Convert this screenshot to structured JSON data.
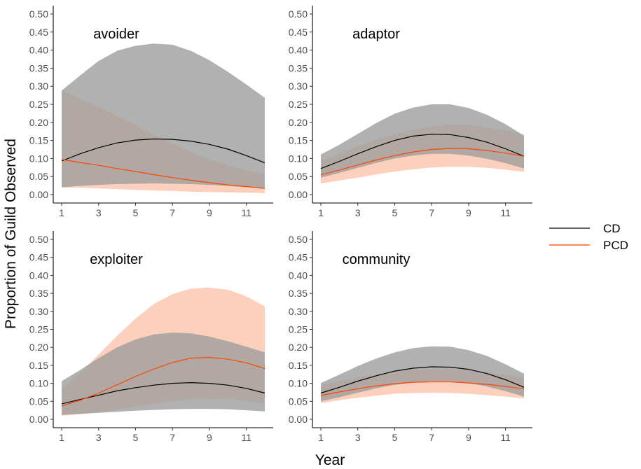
{
  "chart_data": {
    "type": "line",
    "xlabel": "Year",
    "ylabel": "Proportion of Guild Observed",
    "xlim": [
      1,
      12
    ],
    "ylim": [
      0,
      0.5
    ],
    "x_ticks": [
      1,
      3,
      5,
      7,
      9,
      11
    ],
    "y_ticks": [
      "0.00",
      "0.05",
      "0.10",
      "0.15",
      "0.20",
      "0.25",
      "0.30",
      "0.35",
      "0.40",
      "0.45",
      "0.50"
    ],
    "x": [
      1,
      2,
      3,
      4,
      5,
      6,
      7,
      8,
      9,
      10,
      11,
      12
    ],
    "legend": {
      "position": "right",
      "entries": [
        {
          "name": "CD",
          "color": "#000000"
        },
        {
          "name": "PCD",
          "color": "#ff4500"
        }
      ]
    },
    "ribbon_colors": {
      "CD": "#9e9e9e",
      "PCD": "#fbb79a"
    },
    "panels": [
      {
        "title": "avoider",
        "series": [
          {
            "name": "CD",
            "values": [
              0.093,
              0.113,
              0.13,
              0.143,
              0.151,
              0.154,
              0.153,
              0.148,
              0.139,
              0.126,
              0.108,
              0.088
            ],
            "lower": [
              0.02,
              0.024,
              0.027,
              0.029,
              0.03,
              0.031,
              0.03,
              0.029,
              0.027,
              0.024,
              0.021,
              0.018
            ],
            "upper": [
              0.288,
              0.33,
              0.37,
              0.398,
              0.412,
              0.418,
              0.415,
              0.398,
              0.372,
              0.34,
              0.305,
              0.268
            ]
          },
          {
            "name": "PCD",
            "values": [
              0.097,
              0.089,
              0.081,
              0.072,
              0.064,
              0.055,
              0.047,
              0.04,
              0.033,
              0.027,
              0.022,
              0.017
            ],
            "lower": [
              0.02,
              0.019,
              0.017,
              0.015,
              0.013,
              0.011,
              0.01,
              0.008,
              0.007,
              0.006,
              0.005,
              0.004
            ],
            "upper": [
              0.288,
              0.265,
              0.243,
              0.218,
              0.193,
              0.165,
              0.141,
              0.118,
              0.099,
              0.082,
              0.067,
              0.056
            ]
          }
        ]
      },
      {
        "title": "adaptor",
        "series": [
          {
            "name": "CD",
            "values": [
              0.072,
              0.092,
              0.113,
              0.133,
              0.15,
              0.162,
              0.167,
              0.166,
              0.158,
              0.145,
              0.127,
              0.106
            ],
            "lower": [
              0.047,
              0.06,
              0.074,
              0.088,
              0.1,
              0.108,
              0.113,
              0.113,
              0.108,
              0.099,
              0.087,
              0.072
            ],
            "upper": [
              0.111,
              0.138,
              0.168,
              0.198,
              0.224,
              0.241,
              0.25,
              0.25,
              0.24,
              0.221,
              0.195,
              0.163
            ]
          },
          {
            "name": "PCD",
            "values": [
              0.055,
              0.068,
              0.082,
              0.096,
              0.108,
              0.118,
              0.125,
              0.128,
              0.127,
              0.122,
              0.115,
              0.106
            ],
            "lower": [
              0.031,
              0.039,
              0.047,
              0.056,
              0.064,
              0.07,
              0.075,
              0.077,
              0.077,
              0.074,
              0.069,
              0.063
            ],
            "upper": [
              0.093,
              0.113,
              0.134,
              0.152,
              0.167,
              0.18,
              0.189,
              0.193,
              0.192,
              0.187,
              0.178,
              0.166
            ]
          }
        ]
      },
      {
        "title": "exploiter",
        "series": [
          {
            "name": "CD",
            "values": [
              0.043,
              0.055,
              0.067,
              0.079,
              0.088,
              0.095,
              0.1,
              0.102,
              0.1,
              0.095,
              0.086,
              0.073
            ],
            "lower": [
              0.012,
              0.015,
              0.018,
              0.021,
              0.024,
              0.026,
              0.028,
              0.029,
              0.029,
              0.028,
              0.025,
              0.022
            ],
            "upper": [
              0.106,
              0.137,
              0.17,
              0.2,
              0.222,
              0.236,
              0.241,
              0.239,
              0.23,
              0.217,
              0.202,
              0.186
            ]
          },
          {
            "name": "PCD",
            "values": [
              0.037,
              0.053,
              0.073,
              0.096,
              0.119,
              0.14,
              0.158,
              0.17,
              0.172,
              0.167,
              0.157,
              0.141
            ],
            "lower": [
              0.01,
              0.014,
              0.02,
              0.027,
              0.035,
              0.043,
              0.05,
              0.055,
              0.057,
              0.056,
              0.051,
              0.044
            ],
            "upper": [
              0.085,
              0.13,
              0.18,
              0.232,
              0.28,
              0.321,
              0.348,
              0.363,
              0.366,
              0.36,
              0.342,
              0.314
            ]
          }
        ]
      },
      {
        "title": "community",
        "series": [
          {
            "name": "CD",
            "values": [
              0.073,
              0.089,
              0.106,
              0.121,
              0.134,
              0.142,
              0.146,
              0.145,
              0.139,
              0.127,
              0.11,
              0.089
            ],
            "lower": [
              0.05,
              0.061,
              0.074,
              0.086,
              0.096,
              0.102,
              0.106,
              0.106,
              0.101,
              0.091,
              0.078,
              0.063
            ],
            "upper": [
              0.101,
              0.124,
              0.148,
              0.169,
              0.186,
              0.198,
              0.203,
              0.202,
              0.192,
              0.176,
              0.153,
              0.127
            ]
          },
          {
            "name": "PCD",
            "values": [
              0.066,
              0.076,
              0.085,
              0.093,
              0.099,
              0.103,
              0.104,
              0.104,
              0.101,
              0.097,
              0.091,
              0.085
            ],
            "lower": [
              0.045,
              0.053,
              0.06,
              0.066,
              0.071,
              0.073,
              0.074,
              0.073,
              0.071,
              0.067,
              0.063,
              0.058
            ],
            "upper": [
              0.095,
              0.107,
              0.117,
              0.126,
              0.133,
              0.138,
              0.14,
              0.139,
              0.136,
              0.131,
              0.124,
              0.116
            ]
          }
        ]
      }
    ]
  }
}
